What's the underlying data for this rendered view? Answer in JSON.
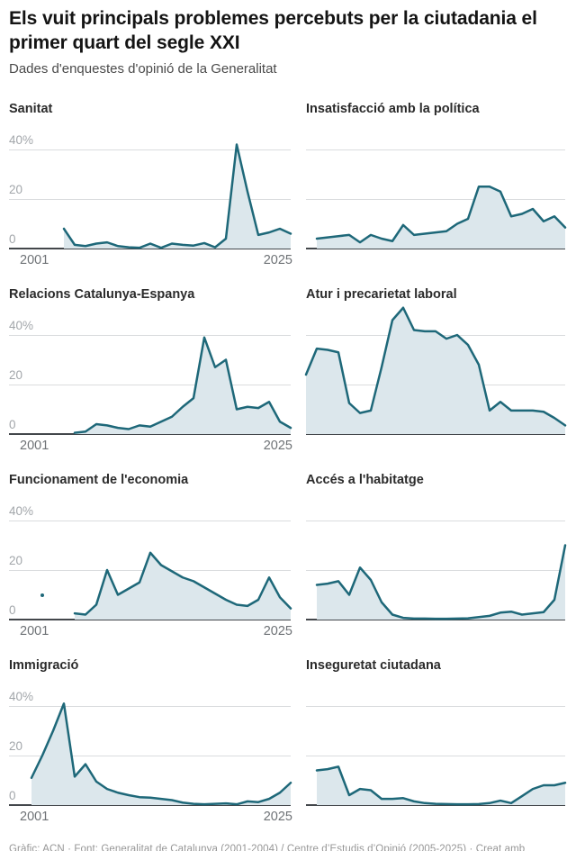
{
  "header": {
    "title": "Els vuit principals problemes percebuts per la ciutadania el\nprimer quart del segle XXI",
    "subtitle": "Dades d'enquestes d'opinió de la Generalitat"
  },
  "footer": {
    "text": "Gràfic: ACN · Font: Generalitat de Catalunya (2001-2004) / Centre d’Estudis d’Opinió (2005-2025) · Creat amb Datawrapper"
  },
  "colors": {
    "line": "#1e6879",
    "fill": "#dce7ec",
    "grid": "#dadcde",
    "axis_baseline": "#43474b",
    "y_tick_text": "#a2a6aa",
    "x_tick_text": "#6e7276"
  },
  "axis": {
    "x_range": [
      2001,
      2025
    ],
    "x_tick_labels": [
      "2001",
      "2025"
    ],
    "y_gridlines": [
      40,
      20,
      0
    ],
    "y_tick_labels": [
      "40%",
      "20",
      "0"
    ],
    "unit": "%"
  },
  "chart_data": [
    {
      "type": "area",
      "title": "Sanitat",
      "unit": "%",
      "start_year": 2004,
      "end_year": 2025,
      "show_y_labels": true,
      "show_x_labels": true,
      "values": [
        8,
        1.5,
        1,
        2,
        2.5,
        1,
        0.5,
        0.3,
        2,
        0.3,
        2,
        1.5,
        1.2,
        2.2,
        0.5,
        4,
        42,
        23,
        5.5,
        6.5,
        8,
        6
      ]
    },
    {
      "type": "area",
      "title": "Insatisfacció amb la política",
      "unit": "%",
      "start_year": 2002,
      "end_year": 2025,
      "show_y_labels": false,
      "show_x_labels": false,
      "values": [
        4,
        4.5,
        5,
        5.5,
        2.5,
        5.5,
        4,
        3,
        9.5,
        5.5,
        6,
        6.5,
        7,
        10,
        12,
        25,
        25,
        23,
        13,
        14,
        16,
        11,
        13,
        8.5
      ]
    },
    {
      "type": "area",
      "title": "Relacions Catalunya-Espanya",
      "unit": "%",
      "start_year": 2005,
      "end_year": 2025,
      "show_y_labels": true,
      "show_x_labels": true,
      "values": [
        0.5,
        1,
        4,
        3.5,
        2.5,
        2,
        3.5,
        3,
        5,
        7,
        11,
        14.5,
        39,
        27,
        30,
        10,
        11,
        10.5,
        13,
        5,
        2.5
      ]
    },
    {
      "type": "area",
      "title": "Atur i precarietat laboral",
      "unit": "%",
      "start_year": 2001,
      "end_year": 2025,
      "show_y_labels": false,
      "show_x_labels": false,
      "values": [
        24,
        34.5,
        34,
        33,
        12.5,
        8.5,
        9.5,
        27,
        46,
        51,
        42,
        41.5,
        41.5,
        38.5,
        40,
        36,
        28,
        9.5,
        13,
        9.5,
        9.5,
        9.5,
        9,
        6.5,
        3.5
      ]
    },
    {
      "type": "area",
      "title": "Funcionament de l'economia",
      "unit": "%",
      "start_year": 2005,
      "end_year": 2025,
      "show_y_labels": true,
      "show_x_labels": true,
      "dot": {
        "year": 2002,
        "value": 9.8
      },
      "values": [
        2.5,
        2,
        6,
        20,
        10,
        12.5,
        15,
        27,
        22,
        19.5,
        17,
        15.5,
        13,
        10.5,
        8,
        6,
        5.5,
        8,
        17,
        9,
        4.5
      ]
    },
    {
      "type": "area",
      "title": "Accés a l'habitatge",
      "unit": "%",
      "start_year": 2002,
      "end_year": 2025,
      "show_y_labels": false,
      "show_x_labels": false,
      "values": [
        14,
        14.5,
        15.5,
        10,
        21,
        16,
        7,
        2,
        0.7,
        0.4,
        0.4,
        0.3,
        0.3,
        0.4,
        0.5,
        1,
        1.5,
        2.8,
        3.2,
        2,
        2.5,
        3,
        8,
        30
      ]
    },
    {
      "type": "area",
      "title": "Immigració",
      "unit": "%",
      "start_year": 2001,
      "end_year": 2025,
      "show_y_labels": true,
      "show_x_labels": true,
      "values": [
        11,
        20,
        30,
        41,
        11.5,
        16.5,
        9.5,
        6.5,
        5,
        4,
        3.2,
        3,
        2.5,
        2,
        1,
        0.5,
        0.3,
        0.5,
        0.7,
        0.3,
        1.5,
        1.2,
        2.5,
        5,
        9
      ]
    },
    {
      "type": "area",
      "title": "Inseguretat ciutadana",
      "unit": "%",
      "start_year": 2002,
      "end_year": 2025,
      "show_y_labels": false,
      "show_x_labels": false,
      "values": [
        14,
        14.5,
        15.5,
        4,
        6.5,
        6,
        2.5,
        2.5,
        2.8,
        1.5,
        0.8,
        0.5,
        0.4,
        0.3,
        0.3,
        0.4,
        0.8,
        1.8,
        0.8,
        3.6,
        6.5,
        8,
        8,
        9
      ]
    }
  ]
}
